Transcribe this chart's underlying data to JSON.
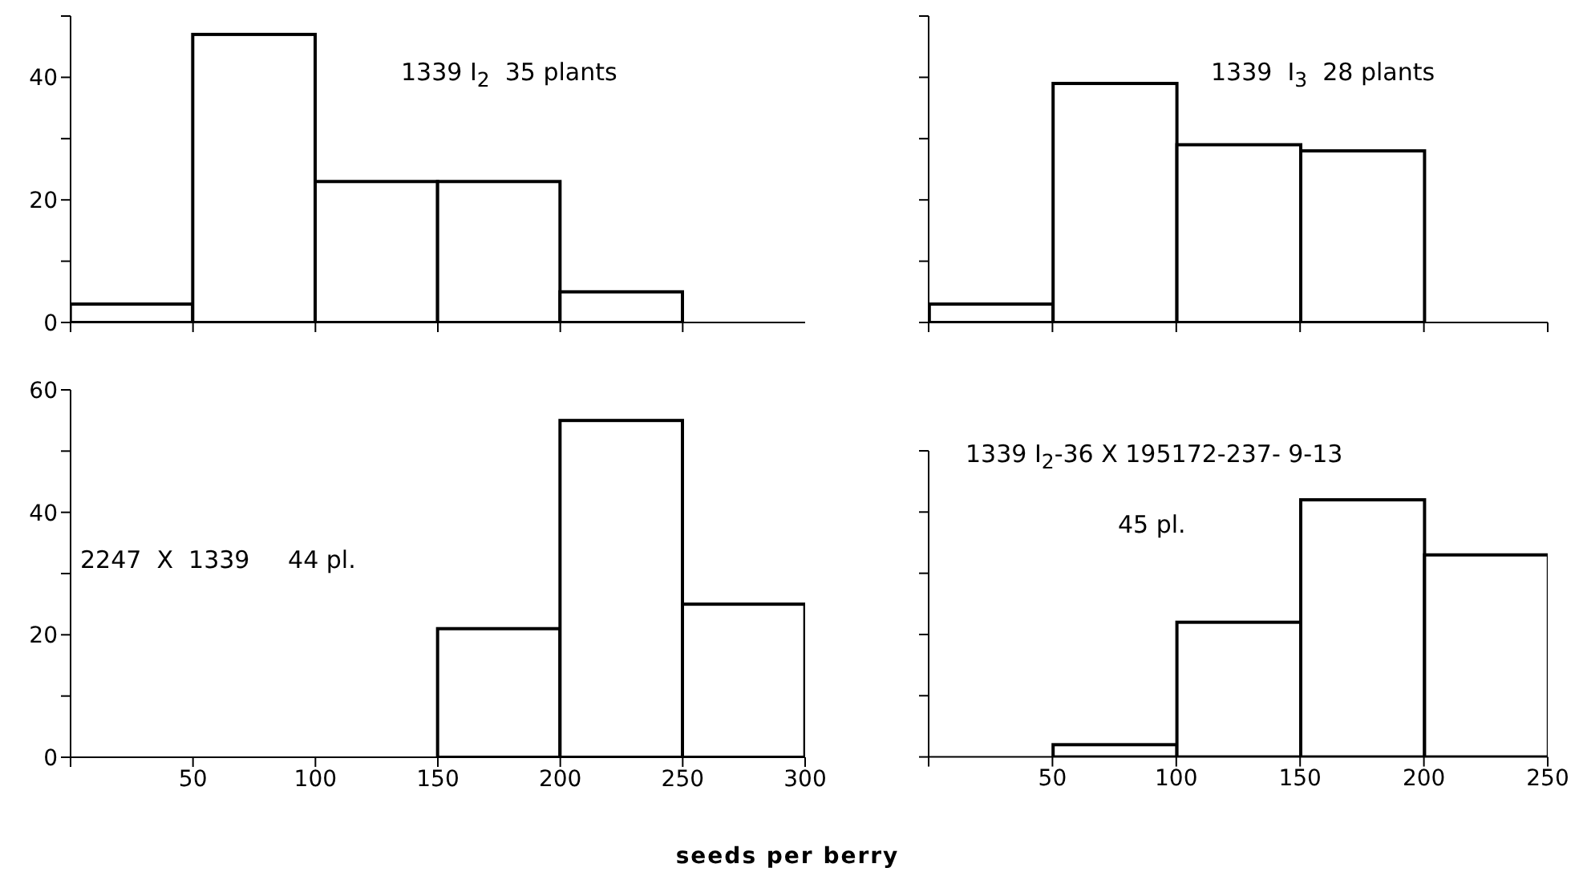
{
  "chart_data": [
    {
      "type": "histogram",
      "bins": [
        0,
        50,
        100,
        150,
        200,
        250
      ],
      "values": [
        3,
        47,
        23,
        23,
        5
      ],
      "color": "#000000",
      "xlim": [
        0,
        300
      ],
      "xticks": [
        {
          "value": 0,
          "label": null
        },
        {
          "value": 50,
          "label": null
        },
        {
          "value": 100,
          "label": null
        },
        {
          "value": 150,
          "label": null
        },
        {
          "value": 200,
          "label": null
        },
        {
          "value": 250,
          "label": null
        }
      ],
      "ylim": [
        0,
        50
      ],
      "yticks": [
        0,
        {
          "value": 10,
          "label": null
        },
        20,
        {
          "value": 30,
          "label": null
        },
        40,
        {
          "value": 50,
          "label": null
        }
      ],
      "tick_labels": "y",
      "grid": false,
      "annotations": [
        "1339 I$_{2}$  35 plants"
      ]
    },
    {
      "type": "histogram",
      "bins": [
        0,
        50,
        100,
        150,
        200
      ],
      "values": [
        3,
        39,
        29,
        28
      ],
      "color": "#000000",
      "xlim": [
        0,
        250
      ],
      "xticks": [
        {
          "value": 0,
          "label": null
        },
        {
          "value": 50,
          "label": null
        },
        {
          "value": 100,
          "label": null
        },
        {
          "value": 150,
          "label": null
        },
        {
          "value": 200,
          "label": null
        },
        {
          "value": 250,
          "label": null
        }
      ],
      "ylim": [
        0,
        50
      ],
      "yticks": [
        {
          "value": 0,
          "label": null
        },
        {
          "value": 10,
          "label": null
        },
        {
          "value": 20,
          "label": null
        },
        {
          "value": 30,
          "label": null
        },
        {
          "value": 40,
          "label": null
        },
        {
          "value": 50,
          "label": null
        }
      ],
      "tick_labels": false,
      "grid": false,
      "annotations": [
        "1339  I$_{3}$  28 plants"
      ]
    },
    {
      "type": "histogram",
      "bins": [
        0,
        50,
        100,
        150,
        200,
        250,
        300
      ],
      "values": [
        0,
        0,
        0,
        21,
        55,
        25
      ],
      "color": "#000000",
      "xlim": [
        0,
        300
      ],
      "xticks": [
        {
          "value": 0,
          "label": null
        },
        50,
        100,
        150,
        200,
        250,
        300
      ],
      "ylim": [
        0,
        60
      ],
      "yticks": [
        0,
        {
          "value": 10,
          "label": null
        },
        20,
        {
          "value": 30,
          "label": null
        },
        40,
        {
          "value": 50,
          "label": null
        },
        60
      ],
      "grid": false,
      "xlabel": "seeds per berry",
      "annotations": [
        "2247  X  1339     44 pl."
      ]
    },
    {
      "type": "histogram",
      "bins": [
        0,
        50,
        100,
        150,
        200,
        250
      ],
      "values": [
        0,
        2,
        22,
        42,
        33
      ],
      "color": "#000000",
      "xlim": [
        0,
        250
      ],
      "xticks": [
        {
          "value": 0,
          "label": null
        },
        50,
        100,
        150,
        200,
        250
      ],
      "ylim": [
        0,
        50
      ],
      "yticks": [
        {
          "value": 0,
          "label": null
        },
        {
          "value": 10,
          "label": null
        },
        {
          "value": 20,
          "label": null
        },
        {
          "value": 30,
          "label": null
        },
        {
          "value": 40,
          "label": null
        },
        {
          "value": 50,
          "label": null
        }
      ],
      "tick_labels": "x",
      "grid": false,
      "annotations": [
        "1339 I$_{2}$-36 X 195172-237- 9-13",
        "45 pl."
      ]
    }
  ]
}
